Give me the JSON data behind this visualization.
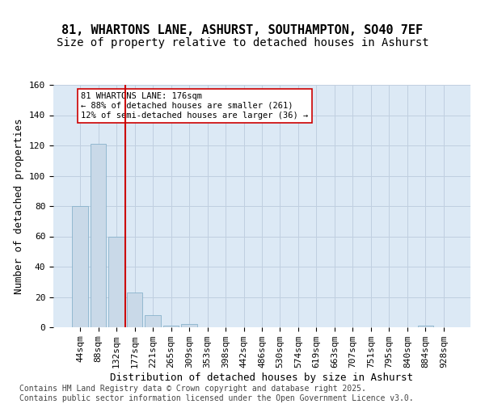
{
  "title1": "81, WHARTONS LANE, ASHURST, SOUTHAMPTON, SO40 7EF",
  "title2": "Size of property relative to detached houses in Ashurst",
  "xlabel": "Distribution of detached houses by size in Ashurst",
  "ylabel": "Number of detached properties",
  "categories": [
    "44sqm",
    "88sqm",
    "132sqm",
    "177sqm",
    "221sqm",
    "265sqm",
    "309sqm",
    "353sqm",
    "398sqm",
    "442sqm",
    "486sqm",
    "530sqm",
    "574sqm",
    "619sqm",
    "663sqm",
    "707sqm",
    "751sqm",
    "795sqm",
    "840sqm",
    "884sqm",
    "928sqm"
  ],
  "values": [
    80,
    121,
    60,
    23,
    8,
    1,
    2,
    0,
    0,
    0,
    0,
    0,
    0,
    0,
    0,
    0,
    0,
    0,
    0,
    1,
    0
  ],
  "bar_color": "#c9d9e8",
  "bar_edge_color": "#7baac5",
  "vline_position": 2.5,
  "vline_color": "#cc0000",
  "annotation_text": "81 WHARTONS LANE: 176sqm\n← 88% of detached houses are smaller (261)\n12% of semi-detached houses are larger (36) →",
  "annotation_box_color": "#ffffff",
  "annotation_box_edge": "#cc0000",
  "ylim": [
    0,
    160
  ],
  "yticks": [
    0,
    20,
    40,
    60,
    80,
    100,
    120,
    140,
    160
  ],
  "grid_color": "#c0cfe0",
  "bg_color": "#dce9f5",
  "footer": "Contains HM Land Registry data © Crown copyright and database right 2025.\nContains public sector information licensed under the Open Government Licence v3.0.",
  "title_fontsize": 11,
  "subtitle_fontsize": 10,
  "axis_label_fontsize": 9,
  "tick_fontsize": 8,
  "footer_fontsize": 7
}
